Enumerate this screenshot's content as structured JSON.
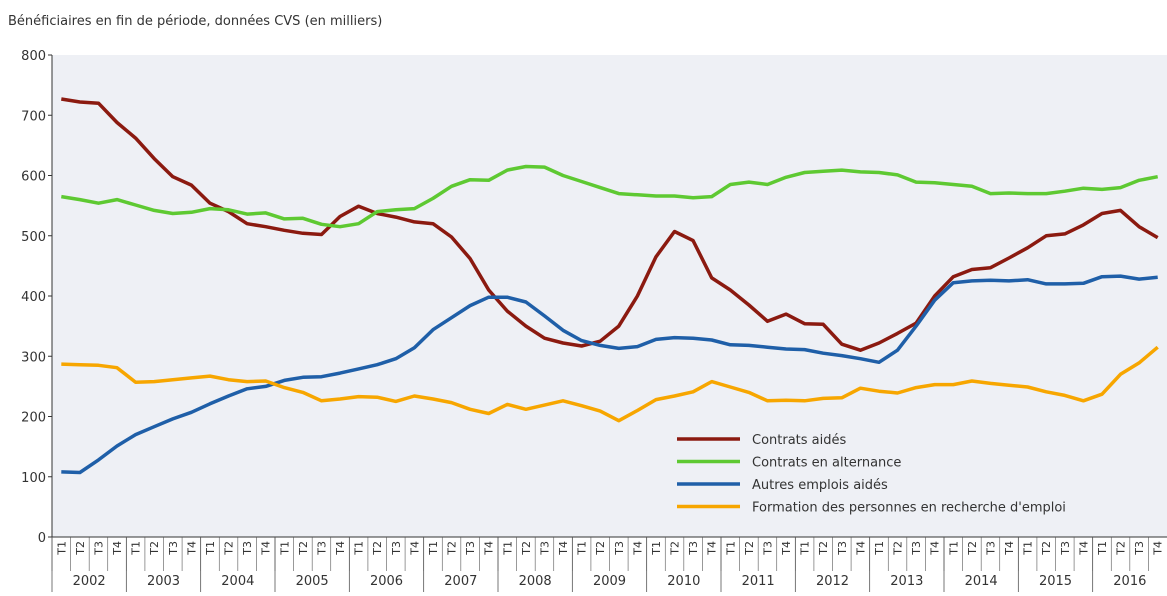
{
  "chart_data": {
    "type": "line",
    "subtitle": "Bénéficiaires en fin de période, données CVS (en milliers)",
    "categories": [
      "T1",
      "T2",
      "T3",
      "T4",
      "T1",
      "T2",
      "T3",
      "T4",
      "T1",
      "T2",
      "T3",
      "T4",
      "T1",
      "T2",
      "T3",
      "T4",
      "T1",
      "T2",
      "T3",
      "T4",
      "T1",
      "T2",
      "T3",
      "T4",
      "T1",
      "T2",
      "T3",
      "T4",
      "T1",
      "T2",
      "T3",
      "T4",
      "T1",
      "T2",
      "T3",
      "T4",
      "T1",
      "T2",
      "T3",
      "T4",
      "T1",
      "T2",
      "T3",
      "T4",
      "T1",
      "T2",
      "T3",
      "T4",
      "T1",
      "T2",
      "T3",
      "T4",
      "T1",
      "T2",
      "T3",
      "T4",
      "T1",
      "T2",
      "T3",
      "T4"
    ],
    "years": [
      "2002",
      "2003",
      "2004",
      "2005",
      "2006",
      "2007",
      "2008",
      "2009",
      "2010",
      "2011",
      "2012",
      "2013",
      "2014",
      "2015",
      "2016"
    ],
    "ylim": [
      0,
      800
    ],
    "yticks": [
      0,
      100,
      200,
      300,
      400,
      500,
      600,
      700,
      800
    ],
    "grid": false,
    "series": [
      {
        "name": "Contrats aidés",
        "color": "#8b1a10",
        "values": [
          727,
          722,
          720,
          688,
          662,
          628,
          598,
          584,
          554,
          540,
          520,
          515,
          509,
          504,
          502,
          532,
          549,
          537,
          531,
          523,
          520,
          498,
          462,
          410,
          375,
          350,
          330,
          322,
          317,
          325,
          350,
          400,
          465,
          507,
          492,
          430,
          410,
          385,
          358,
          370,
          354,
          353,
          320,
          310,
          322,
          338,
          355,
          400,
          432,
          444,
          447,
          463,
          480,
          500,
          503,
          518,
          537,
          542,
          515,
          497
        ]
      },
      {
        "name": "Contrats en alternance",
        "color": "#5ec932",
        "values": [
          565,
          560,
          554,
          560,
          551,
          542,
          537,
          539,
          545,
          543,
          536,
          538,
          528,
          529,
          519,
          515,
          520,
          540,
          543,
          545,
          562,
          582,
          593,
          592,
          609,
          615,
          614,
          600,
          590,
          580,
          570,
          568,
          566,
          566,
          563,
          565,
          585,
          589,
          585,
          597,
          605,
          607,
          609,
          606,
          605,
          601,
          589,
          588,
          585,
          582,
          570,
          571,
          570,
          570,
          574,
          579,
          577,
          580,
          592,
          598
        ]
      },
      {
        "name": "Autres emplois aidés",
        "color": "#1f5fa8",
        "values": [
          108,
          107,
          128,
          151,
          170,
          183,
          196,
          207,
          221,
          234,
          246,
          250,
          260,
          265,
          266,
          272,
          279,
          286,
          296,
          314,
          344,
          364,
          384,
          398,
          398,
          390,
          367,
          343,
          326,
          318,
          313,
          316,
          328,
          331,
          330,
          327,
          319,
          318,
          315,
          312,
          311,
          305,
          301,
          296,
          290,
          310,
          350,
          393,
          422,
          425,
          426,
          425,
          427,
          420,
          420,
          421,
          432,
          433,
          428,
          431
        ]
      },
      {
        "name": "Formation des personnes en recherche d'emploi",
        "color": "#f7a600",
        "values": [
          287,
          286,
          285,
          281,
          257,
          258,
          261,
          264,
          267,
          261,
          258,
          259,
          248,
          240,
          226,
          229,
          233,
          232,
          225,
          234,
          229,
          223,
          212,
          205,
          220,
          212,
          219,
          226,
          218,
          209,
          193,
          210,
          228,
          234,
          241,
          258,
          249,
          240,
          226,
          227,
          226,
          230,
          231,
          247,
          242,
          239,
          248,
          253,
          253,
          259,
          255,
          252,
          249,
          241,
          235,
          226,
          237,
          270,
          289,
          315
        ]
      }
    ]
  }
}
